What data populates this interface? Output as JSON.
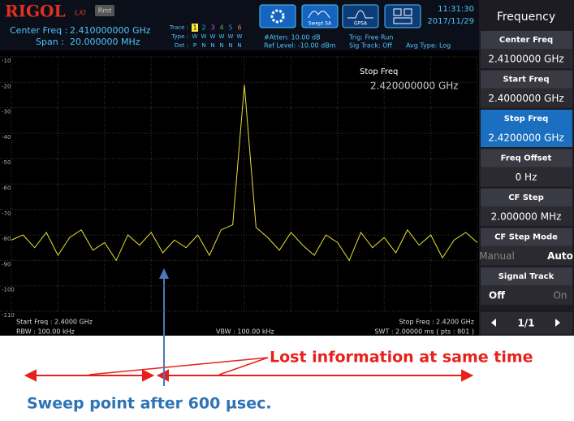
{
  "header": {
    "logo": "RIGOL",
    "lxi": "LXI",
    "rmt": "Rmt",
    "center_freq_label": "Center Freq :",
    "center_freq_value": "2.410000000 GHz",
    "span_label": "Span :",
    "span_value": "20.000000 MHz",
    "trace_label": "Trace :",
    "trace_numbers": [
      "1",
      "2",
      "3",
      "4",
      "5",
      "6"
    ],
    "type_label": "Type :",
    "type_values": [
      "W",
      "W",
      "W",
      "W",
      "W",
      "W"
    ],
    "det_label": "Det :",
    "det_values": [
      "P",
      "N",
      "N",
      "N",
      "N",
      "N"
    ],
    "atten": "#Atten: 10.00 dB",
    "ref_level": "Ref Level: -10.00 dBm",
    "trig": "Trig: Free Run",
    "sig_track": "Sig Track: Off",
    "avg_type": "Avg Type: Log",
    "mode_buttons": [
      "Swept SA",
      "GPSA"
    ],
    "time": "11:31:30",
    "date": "2017/11/29"
  },
  "marker": {
    "label": "Stop Freq",
    "value": "2.420000000 GHz"
  },
  "footer": {
    "start": "Start Freq : 2.4000 GHz",
    "rbw": "RBW : 100.00 kHz",
    "vbw": "VBW : 100.00 kHz",
    "stop": "Stop Freq : 2.4200 GHz",
    "swt": "SWT : 2.00000 ms ( pts : 801 )"
  },
  "menu": {
    "title": "Frequency",
    "items": [
      {
        "label": "Center Freq",
        "value": "2.4100000 GHz"
      },
      {
        "label": "Start Freq",
        "value": "2.4000000 GHz"
      },
      {
        "label": "Stop Freq",
        "value": "2.4200000 GHz"
      },
      {
        "label": "Freq Offset",
        "value": "0 Hz"
      },
      {
        "label": "CF Step",
        "value": "2.000000 MHz"
      },
      {
        "label": "CF Step Mode",
        "options": [
          "Manual",
          "Auto"
        ]
      },
      {
        "label": "Signal Track",
        "options": [
          "Off",
          "On"
        ]
      }
    ],
    "page": "1/1"
  },
  "annotations": {
    "lost": "Lost information at same time",
    "sweep": "Sweep point after 600 µsec."
  },
  "chart_data": {
    "type": "line",
    "x": [
      2.4,
      2.4005,
      2.401,
      2.4015,
      2.402,
      2.4025,
      2.403,
      2.4035,
      2.404,
      2.4045,
      2.405,
      2.4055,
      2.406,
      2.4065,
      2.407,
      2.4075,
      2.408,
      2.4085,
      2.409,
      2.4095,
      2.41,
      2.4105,
      2.411,
      2.4115,
      2.412,
      2.4125,
      2.413,
      2.4135,
      2.414,
      2.4145,
      2.415,
      2.4155,
      2.416,
      2.4165,
      2.417,
      2.4175,
      2.418,
      2.4185,
      2.419,
      2.4195,
      2.42
    ],
    "series": [
      {
        "color": "#e8e030",
        "values": [
          -82,
          -80,
          -85,
          -79,
          -88,
          -81,
          -78,
          -86,
          -83,
          -90,
          -80,
          -84,
          -79,
          -87,
          -82,
          -85,
          -80,
          -88,
          -78,
          -76,
          -21,
          -77,
          -81,
          -86,
          -79,
          -84,
          -88,
          -80,
          -83,
          -90,
          -79,
          -85,
          -81,
          -87,
          -78,
          -84,
          -80,
          -89,
          -82,
          -79,
          -83
        ]
      }
    ],
    "xlim": [
      2.4,
      2.42
    ],
    "ylim": [
      -110,
      -10
    ],
    "yticks": [
      -10,
      -20,
      -30,
      -40,
      -50,
      -60,
      -70,
      -80,
      -90,
      -100,
      -110
    ],
    "grid": true
  }
}
